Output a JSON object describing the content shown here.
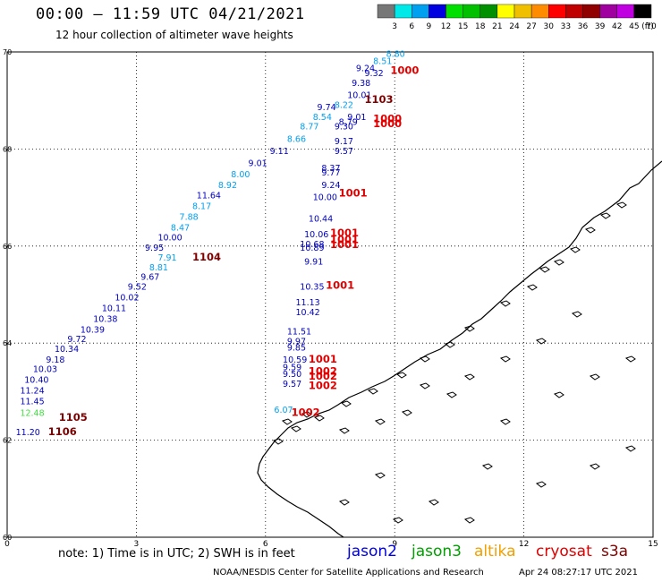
{
  "header": {
    "title": "00:00 – 11:59 UTC 04/21/2021",
    "subtitle": "12 hour collection of altimeter wave heights"
  },
  "colorbar": {
    "ticks": [
      "3",
      "6",
      "9",
      "12",
      "15",
      "18",
      "21",
      "24",
      "27",
      "30",
      "33",
      "36",
      "39",
      "42",
      "45",
      "70"
    ],
    "unit": "(ft)",
    "colors": [
      "#777777",
      "#00e8e8",
      "#00a0f0",
      "#0000e0",
      "#00e000",
      "#00c000",
      "#009000",
      "#ffff00",
      "#f0c000",
      "#ff8c00",
      "#ff0000",
      "#c00000",
      "#900000",
      "#a000a0",
      "#c000e0",
      "#000000"
    ]
  },
  "chart_data": {
    "type": "scatter",
    "x_axis": {
      "ticks": [
        0,
        3,
        6,
        9,
        12,
        15
      ],
      "range": [
        0,
        15
      ]
    },
    "y_axis": {
      "ticks": [
        60,
        62,
        64,
        66,
        68,
        70
      ],
      "range": [
        60,
        70
      ]
    },
    "grid": true,
    "wave_heights": [
      {
        "lon": 8.8,
        "lat": 69.9,
        "text": "8.80",
        "color": "#00a0f0"
      },
      {
        "lon": 8.5,
        "lat": 69.75,
        "text": "8.51",
        "color": "#00a0f0"
      },
      {
        "lon": 8.1,
        "lat": 69.6,
        "text": "9.24",
        "color": "#0000c0"
      },
      {
        "lon": 8.3,
        "lat": 69.5,
        "text": "9.32",
        "color": "#0000c0"
      },
      {
        "lon": 8.0,
        "lat": 69.3,
        "text": "9.38",
        "color": "#0000c0"
      },
      {
        "lon": 7.9,
        "lat": 69.05,
        "text": "10.01",
        "color": "#0000c0"
      },
      {
        "lon": 7.6,
        "lat": 68.85,
        "text": "8.22",
        "color": "#00a0f0"
      },
      {
        "lon": 7.2,
        "lat": 68.8,
        "text": "9.74",
        "color": "#0000c0"
      },
      {
        "lon": 7.1,
        "lat": 68.6,
        "text": "8.54",
        "color": "#00a0f0"
      },
      {
        "lon": 6.8,
        "lat": 68.4,
        "text": "8.77",
        "color": "#00a0f0"
      },
      {
        "lon": 6.5,
        "lat": 68.15,
        "text": "8.66",
        "color": "#00a0f0"
      },
      {
        "lon": 6.1,
        "lat": 67.9,
        "text": "9.11",
        "color": "#0000c0"
      },
      {
        "lon": 5.6,
        "lat": 67.65,
        "text": "9.01",
        "color": "#0000c0"
      },
      {
        "lon": 5.2,
        "lat": 67.42,
        "text": "8.00",
        "color": "#00a0f0"
      },
      {
        "lon": 4.9,
        "lat": 67.2,
        "text": "8.92",
        "color": "#00a0f0"
      },
      {
        "lon": 4.4,
        "lat": 66.98,
        "text": "11.64",
        "color": "#0000c0"
      },
      {
        "lon": 4.3,
        "lat": 66.76,
        "text": "8.17",
        "color": "#00a0f0"
      },
      {
        "lon": 4.0,
        "lat": 66.54,
        "text": "7.88",
        "color": "#00a0f0"
      },
      {
        "lon": 3.8,
        "lat": 66.32,
        "text": "8.47",
        "color": "#00a0f0"
      },
      {
        "lon": 3.5,
        "lat": 66.12,
        "text": "10.00",
        "color": "#0000c0"
      },
      {
        "lon": 3.2,
        "lat": 65.9,
        "text": "9.95",
        "color": "#0000c0"
      },
      {
        "lon": 3.5,
        "lat": 65.7,
        "text": "7.91",
        "color": "#00a0f0"
      },
      {
        "lon": 3.3,
        "lat": 65.5,
        "text": "8.81",
        "color": "#00a0f0"
      },
      {
        "lon": 3.1,
        "lat": 65.3,
        "text": "9.67",
        "color": "#0000c0"
      },
      {
        "lon": 2.8,
        "lat": 65.1,
        "text": "9.52",
        "color": "#0000c0"
      },
      {
        "lon": 2.5,
        "lat": 64.88,
        "text": "10.02",
        "color": "#0000c0"
      },
      {
        "lon": 2.2,
        "lat": 64.66,
        "text": "10.11",
        "color": "#0000c0"
      },
      {
        "lon": 2.0,
        "lat": 64.44,
        "text": "10.38",
        "color": "#0000c0"
      },
      {
        "lon": 1.7,
        "lat": 64.22,
        "text": "10.39",
        "color": "#0000c0"
      },
      {
        "lon": 1.4,
        "lat": 64.02,
        "text": "9.72",
        "color": "#0000c0"
      },
      {
        "lon": 1.1,
        "lat": 63.82,
        "text": "10.34",
        "color": "#0000c0"
      },
      {
        "lon": 0.9,
        "lat": 63.6,
        "text": "9.18",
        "color": "#0000c0"
      },
      {
        "lon": 0.6,
        "lat": 63.4,
        "text": "10.03",
        "color": "#0000c0"
      },
      {
        "lon": 0.4,
        "lat": 63.18,
        "text": "10.40",
        "color": "#0000c0"
      },
      {
        "lon": 0.3,
        "lat": 62.96,
        "text": "11.24",
        "color": "#0000c0"
      },
      {
        "lon": 0.3,
        "lat": 62.74,
        "text": "11.45",
        "color": "#0000c0"
      },
      {
        "lon": 0.3,
        "lat": 62.5,
        "text": "12.48",
        "color": "#40e040"
      },
      {
        "lon": 0.2,
        "lat": 62.1,
        "text": "11.20",
        "color": "#0000c0"
      },
      {
        "lon": 7.9,
        "lat": 68.6,
        "text": "9.01",
        "color": "#0000c0"
      },
      {
        "lon": 7.7,
        "lat": 68.5,
        "text": "8.79",
        "color": "#0000c0"
      },
      {
        "lon": 7.6,
        "lat": 68.4,
        "text": "9.30",
        "color": "#0000c0"
      },
      {
        "lon": 7.6,
        "lat": 68.1,
        "text": "9.17",
        "color": "#0000c0"
      },
      {
        "lon": 7.6,
        "lat": 67.9,
        "text": "9.57",
        "color": "#0000c0"
      },
      {
        "lon": 7.3,
        "lat": 67.55,
        "text": "8.37",
        "color": "#0000c0"
      },
      {
        "lon": 7.3,
        "lat": 67.45,
        "text": "9.77",
        "color": "#0000c0"
      },
      {
        "lon": 7.3,
        "lat": 67.2,
        "text": "9.24",
        "color": "#0000c0"
      },
      {
        "lon": 7.1,
        "lat": 66.95,
        "text": "10.00",
        "color": "#0000c0"
      },
      {
        "lon": 7.0,
        "lat": 66.5,
        "text": "10.44",
        "color": "#0000c0"
      },
      {
        "lon": 6.9,
        "lat": 66.18,
        "text": "10.06",
        "color": "#0000c0"
      },
      {
        "lon": 6.8,
        "lat": 65.98,
        "text": "10.68",
        "color": "#0000c0"
      },
      {
        "lon": 6.8,
        "lat": 65.9,
        "text": "10.89",
        "color": "#0000c0"
      },
      {
        "lon": 6.9,
        "lat": 65.62,
        "text": "9.91",
        "color": "#0000c0"
      },
      {
        "lon": 6.8,
        "lat": 65.1,
        "text": "10.35",
        "color": "#0000c0"
      },
      {
        "lon": 6.7,
        "lat": 64.78,
        "text": "11.13",
        "color": "#0000c0"
      },
      {
        "lon": 6.7,
        "lat": 64.58,
        "text": "10.42",
        "color": "#0000c0"
      },
      {
        "lon": 6.5,
        "lat": 64.18,
        "text": "11.51",
        "color": "#0000c0"
      },
      {
        "lon": 6.5,
        "lat": 63.98,
        "text": "9.97",
        "color": "#0000c0"
      },
      {
        "lon": 6.5,
        "lat": 63.85,
        "text": "9.85",
        "color": "#0000c0"
      },
      {
        "lon": 6.4,
        "lat": 63.6,
        "text": "10.59",
        "color": "#0000c0"
      },
      {
        "lon": 6.4,
        "lat": 63.44,
        "text": "9.59",
        "color": "#0000c0"
      },
      {
        "lon": 6.4,
        "lat": 63.3,
        "text": "9.50",
        "color": "#0000c0"
      },
      {
        "lon": 6.4,
        "lat": 63.1,
        "text": "9.57",
        "color": "#0000c0"
      },
      {
        "lon": 6.2,
        "lat": 62.56,
        "text": "6.07",
        "color": "#00a0f0"
      }
    ],
    "pressure_labels": [
      {
        "lon": 8.9,
        "lat": 69.55,
        "text": "1000",
        "color": "#e00000"
      },
      {
        "lon": 8.3,
        "lat": 68.95,
        "text": "1103",
        "color": "#800000"
      },
      {
        "lon": 8.5,
        "lat": 68.55,
        "text": "1000",
        "color": "#e00000"
      },
      {
        "lon": 8.5,
        "lat": 68.45,
        "text": "1000",
        "color": "#e00000"
      },
      {
        "lon": 7.7,
        "lat": 67.02,
        "text": "1001",
        "color": "#e00000"
      },
      {
        "lon": 7.5,
        "lat": 66.2,
        "text": "1001",
        "color": "#e00000"
      },
      {
        "lon": 7.5,
        "lat": 66.06,
        "text": "1001",
        "color": "#e00000"
      },
      {
        "lon": 7.5,
        "lat": 65.96,
        "text": "1001",
        "color": "#e00000"
      },
      {
        "lon": 4.3,
        "lat": 65.7,
        "text": "1104",
        "color": "#800000"
      },
      {
        "lon": 7.4,
        "lat": 65.12,
        "text": "1001",
        "color": "#e00000"
      },
      {
        "lon": 7.0,
        "lat": 63.6,
        "text": "1001",
        "color": "#e00000"
      },
      {
        "lon": 7.0,
        "lat": 63.35,
        "text": "1002",
        "color": "#e00000"
      },
      {
        "lon": 7.0,
        "lat": 63.25,
        "text": "1002",
        "color": "#e00000"
      },
      {
        "lon": 7.0,
        "lat": 63.05,
        "text": "1002",
        "color": "#e00000"
      },
      {
        "lon": 6.6,
        "lat": 62.5,
        "text": "1002",
        "color": "#e00000"
      },
      {
        "lon": 1.2,
        "lat": 62.4,
        "text": "1105",
        "color": "#800000"
      },
      {
        "lon": 0.95,
        "lat": 62.1,
        "text": "1106",
        "color": "#800000"
      }
    ]
  },
  "footer": {
    "note": "note:  1) Time is in UTC;  2) SWH is in feet",
    "satellites": [
      {
        "name": "jason2",
        "color": "#0000e0"
      },
      {
        "name": "jason3",
        "color": "#00a000"
      },
      {
        "name": "altika",
        "color": "#f0a000"
      },
      {
        "name": "cryosat",
        "color": "#e00000"
      },
      {
        "name": "s3a",
        "color": "#800000"
      }
    ],
    "credit": "NOAA/NESDIS Center for Satellite Applications and Research",
    "timestamp": "Apr 24 08:27:17 UTC 2021"
  }
}
